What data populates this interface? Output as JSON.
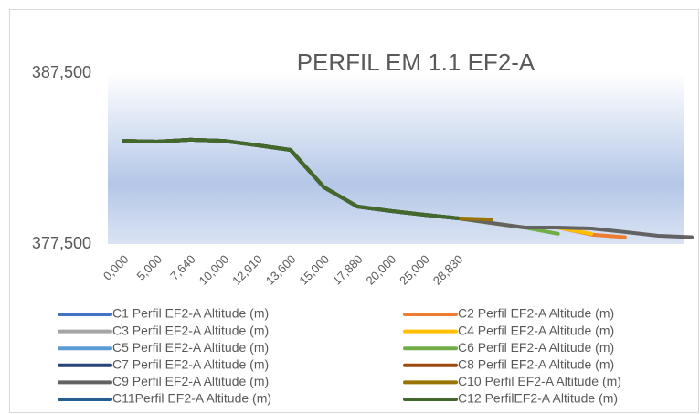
{
  "chart_data": {
    "type": "line",
    "title": "PERFIL EM 1.1 EF2-A",
    "categories": [
      "0,000",
      "5,000",
      "7,640",
      "10,000",
      "12,910",
      "13,600",
      "15,000",
      "17,880",
      "20,000",
      "25,000",
      "28,830",
      null,
      null,
      null,
      null,
      null,
      null,
      null
    ],
    "ylim": [
      377.5,
      387.5
    ],
    "yticks": [
      {
        "value": 377.5,
        "label": "377,500"
      },
      {
        "value": 387.5,
        "label": "387,500"
      }
    ],
    "series": [
      {
        "name": "C1 Perfil EF2-A Altitude (m)",
        "color": "#4472c4",
        "values": [
          383.54,
          383.49,
          383.6,
          383.54,
          383.28,
          383.01,
          380.82,
          379.69,
          379.43,
          379.21,
          379.0,
          null,
          null,
          null,
          null,
          null,
          null,
          null
        ]
      },
      {
        "name": "C2 Perfil EF2-A Altitude (m)",
        "color": "#ed7d31",
        "values": [
          383.54,
          383.49,
          383.6,
          383.54,
          383.28,
          383.01,
          380.82,
          379.69,
          379.43,
          379.21,
          379.0,
          378.73,
          378.46,
          378.46,
          378.05,
          377.9,
          null,
          null
        ]
      },
      {
        "name": "C3 Perfil EF2-A Altitude (m)",
        "color": "#a5a5a5",
        "values": [
          383.54,
          383.49,
          383.6,
          383.54,
          383.28,
          383.01,
          380.82,
          379.69,
          379.43,
          379.21,
          379.0,
          null,
          null,
          null,
          null,
          null,
          null,
          null
        ]
      },
      {
        "name": "C4 Perfil EF2-A Altitude (m)",
        "color": "#ffc000",
        "values": [
          383.54,
          383.49,
          383.6,
          383.54,
          383.28,
          383.01,
          380.82,
          379.69,
          379.43,
          379.21,
          379.0,
          378.73,
          378.46,
          378.46,
          378.1,
          null,
          null,
          null
        ]
      },
      {
        "name": "C5 Perfil EF2-A Altitude (m)",
        "color": "#5b9bd5",
        "values": [
          383.54,
          383.49,
          383.6,
          383.54,
          383.28,
          383.01,
          380.82,
          379.69,
          379.43,
          379.21,
          379.0,
          null,
          null,
          null,
          null,
          null,
          null,
          null
        ]
      },
      {
        "name": "C6 Perfil EF2-A Altitude (m)",
        "color": "#70ad47",
        "values": [
          383.54,
          383.49,
          383.6,
          383.54,
          383.28,
          383.01,
          380.82,
          379.69,
          379.43,
          379.21,
          379.0,
          378.73,
          378.46,
          378.1,
          null,
          null,
          null,
          null
        ]
      },
      {
        "name": "C7 Perfil EF2-A Altitude (m)",
        "color": "#264478",
        "values": [
          383.54,
          383.49,
          383.6,
          383.54,
          383.28,
          383.01,
          380.82,
          379.69,
          379.43,
          379.21,
          379.0,
          null,
          null,
          null,
          null,
          null,
          null,
          null
        ]
      },
      {
        "name": "C8 Perfil EF2-A Altitude (m)",
        "color": "#9e480e",
        "values": [
          383.54,
          383.49,
          383.6,
          383.54,
          383.28,
          383.01,
          380.82,
          379.69,
          379.43,
          379.21,
          379.0,
          null,
          null,
          null,
          null,
          null,
          null,
          null
        ]
      },
      {
        "name": "C9 Perfil EF2-A Altitude (m)",
        "color": "#636363",
        "values": [
          383.54,
          383.49,
          383.6,
          383.54,
          383.28,
          383.01,
          380.82,
          379.69,
          379.43,
          379.21,
          379.0,
          378.73,
          378.46,
          378.46,
          378.41,
          378.2,
          377.98,
          377.9
        ]
      },
      {
        "name": "C10 Perfil EF2-A Altitude (m)",
        "color": "#997300",
        "values": [
          383.54,
          383.49,
          383.6,
          383.54,
          383.28,
          383.01,
          380.82,
          379.69,
          379.43,
          379.21,
          379.0,
          378.94,
          null,
          null,
          null,
          null,
          null,
          null
        ]
      },
      {
        "name": "C11Perfil EF2-A Altitude (m)",
        "color": "#255e91",
        "values": [
          383.54,
          383.49,
          383.6,
          383.54,
          383.28,
          383.01,
          380.82,
          379.69,
          379.43,
          379.21,
          379.0,
          null,
          null,
          null,
          null,
          null,
          null,
          null
        ]
      },
      {
        "name": "C12 PerfilEF2-A Altitude (m)",
        "color": "#43682b",
        "values": [
          383.54,
          383.49,
          383.6,
          383.54,
          383.28,
          383.01,
          380.82,
          379.69,
          379.43,
          379.21,
          379.0,
          null,
          null,
          null,
          null,
          null,
          null,
          null
        ]
      }
    ]
  }
}
